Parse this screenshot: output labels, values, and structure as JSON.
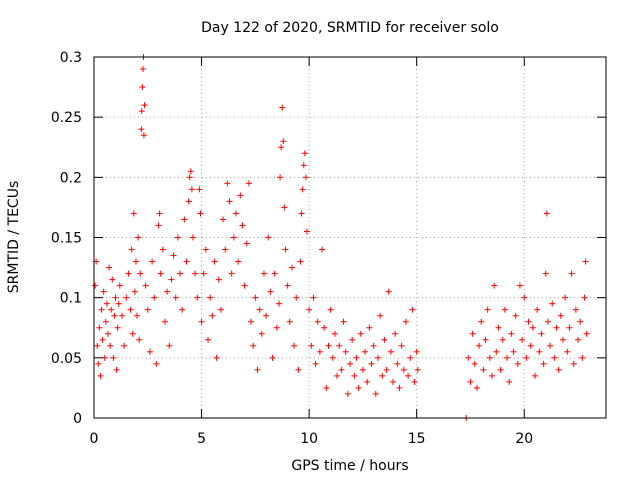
{
  "chart_data": {
    "type": "scatter",
    "title": "Day 122 of 2020, SRMTID for receiver solo",
    "xlabel": "GPS time / hours",
    "ylabel": "SRMTID / TECUs",
    "xlim": [
      0,
      23.8
    ],
    "ylim": [
      0,
      0.3
    ],
    "xticks": [
      0,
      5,
      10,
      15,
      20
    ],
    "xtick_labels": [
      "0",
      "5",
      "10",
      "15",
      "20"
    ],
    "yticks": [
      0,
      0.05,
      0.1,
      0.15,
      0.2,
      0.25,
      0.3
    ],
    "ytick_labels": [
      "0",
      "0.05",
      "0.1",
      "0.15",
      "0.2",
      "0.25",
      "0.3"
    ],
    "grid": true,
    "marker": "+",
    "color": "#ff0000",
    "series": [
      {
        "name": "SRMTID",
        "points": [
          [
            0.05,
            0.11
          ],
          [
            0.1,
            0.13
          ],
          [
            0.15,
            0.06
          ],
          [
            0.2,
            0.045
          ],
          [
            0.25,
            0.075
          ],
          [
            0.3,
            0.035
          ],
          [
            0.35,
            0.09
          ],
          [
            0.4,
            0.065
          ],
          [
            0.45,
            0.105
          ],
          [
            0.5,
            0.05
          ],
          [
            0.55,
            0.08
          ],
          [
            0.6,
            0.095
          ],
          [
            0.65,
            0.07
          ],
          [
            0.7,
            0.125
          ],
          [
            0.75,
            0.06
          ],
          [
            0.8,
            0.09
          ],
          [
            0.85,
            0.115
          ],
          [
            0.9,
            0.05
          ],
          [
            0.95,
            0.085
          ],
          [
            1.0,
            0.1
          ],
          [
            1.05,
            0.04
          ],
          [
            1.1,
            0.075
          ],
          [
            1.15,
            0.095
          ],
          [
            1.2,
            0.11
          ],
          [
            1.3,
            0.085
          ],
          [
            1.4,
            0.06
          ],
          [
            1.5,
            0.1
          ],
          [
            1.6,
            0.12
          ],
          [
            1.7,
            0.09
          ],
          [
            1.75,
            0.14
          ],
          [
            1.8,
            0.07
          ],
          [
            1.85,
            0.17
          ],
          [
            1.9,
            0.105
          ],
          [
            1.95,
            0.13
          ],
          [
            2.0,
            0.085
          ],
          [
            2.05,
            0.15
          ],
          [
            2.1,
            0.065
          ],
          [
            2.15,
            0.12
          ],
          [
            2.2,
            0.24
          ],
          [
            2.22,
            0.255
          ],
          [
            2.25,
            0.275
          ],
          [
            2.28,
            0.29
          ],
          [
            2.3,
            0.3
          ],
          [
            2.32,
            0.235
          ],
          [
            2.35,
            0.26
          ],
          [
            2.4,
            0.11
          ],
          [
            2.5,
            0.09
          ],
          [
            2.6,
            0.055
          ],
          [
            2.7,
            0.13
          ],
          [
            2.8,
            0.1
          ],
          [
            2.9,
            0.045
          ],
          [
            3.0,
            0.16
          ],
          [
            3.05,
            0.17
          ],
          [
            3.1,
            0.12
          ],
          [
            3.2,
            0.14
          ],
          [
            3.3,
            0.08
          ],
          [
            3.4,
            0.105
          ],
          [
            3.5,
            0.06
          ],
          [
            3.6,
            0.115
          ],
          [
            3.7,
            0.135
          ],
          [
            3.8,
            0.1
          ],
          [
            3.9,
            0.15
          ],
          [
            4.0,
            0.12
          ],
          [
            4.1,
            0.09
          ],
          [
            4.2,
            0.165
          ],
          [
            4.3,
            0.13
          ],
          [
            4.4,
            0.18
          ],
          [
            4.45,
            0.2
          ],
          [
            4.5,
            0.205
          ],
          [
            4.55,
            0.19
          ],
          [
            4.6,
            0.15
          ],
          [
            4.7,
            0.12
          ],
          [
            4.8,
            0.1
          ],
          [
            4.9,
            0.19
          ],
          [
            4.95,
            0.17
          ],
          [
            5.0,
            0.08
          ],
          [
            5.1,
            0.12
          ],
          [
            5.2,
            0.14
          ],
          [
            5.3,
            0.065
          ],
          [
            5.4,
            0.1
          ],
          [
            5.5,
            0.085
          ],
          [
            5.6,
            0.13
          ],
          [
            5.7,
            0.05
          ],
          [
            5.8,
            0.115
          ],
          [
            5.9,
            0.09
          ],
          [
            6.0,
            0.165
          ],
          [
            6.1,
            0.14
          ],
          [
            6.2,
            0.195
          ],
          [
            6.3,
            0.18
          ],
          [
            6.4,
            0.12
          ],
          [
            6.5,
            0.15
          ],
          [
            6.6,
            0.17
          ],
          [
            6.7,
            0.13
          ],
          [
            6.8,
            0.185
          ],
          [
            6.9,
            0.16
          ],
          [
            7.0,
            0.11
          ],
          [
            7.1,
            0.145
          ],
          [
            7.2,
            0.195
          ],
          [
            7.3,
            0.08
          ],
          [
            7.4,
            0.06
          ],
          [
            7.5,
            0.1
          ],
          [
            7.6,
            0.04
          ],
          [
            7.7,
            0.09
          ],
          [
            7.8,
            0.07
          ],
          [
            7.9,
            0.12
          ],
          [
            8.0,
            0.085
          ],
          [
            8.1,
            0.15
          ],
          [
            8.2,
            0.105
          ],
          [
            8.3,
            0.05
          ],
          [
            8.4,
            0.12
          ],
          [
            8.5,
            0.075
          ],
          [
            8.6,
            0.095
          ],
          [
            8.65,
            0.2
          ],
          [
            8.7,
            0.225
          ],
          [
            8.75,
            0.258
          ],
          [
            8.8,
            0.23
          ],
          [
            8.85,
            0.175
          ],
          [
            8.9,
            0.14
          ],
          [
            9.0,
            0.11
          ],
          [
            9.1,
            0.08
          ],
          [
            9.2,
            0.125
          ],
          [
            9.3,
            0.06
          ],
          [
            9.4,
            0.1
          ],
          [
            9.5,
            0.04
          ],
          [
            9.6,
            0.13
          ],
          [
            9.65,
            0.17
          ],
          [
            9.7,
            0.19
          ],
          [
            9.75,
            0.21
          ],
          [
            9.8,
            0.22
          ],
          [
            9.85,
            0.2
          ],
          [
            9.9,
            0.155
          ],
          [
            10.0,
            0.09
          ],
          [
            10.1,
            0.06
          ],
          [
            10.2,
            0.1
          ],
          [
            10.3,
            0.045
          ],
          [
            10.4,
            0.08
          ],
          [
            10.5,
            0.055
          ],
          [
            10.6,
            0.14
          ],
          [
            10.7,
            0.075
          ],
          [
            10.8,
            0.025
          ],
          [
            10.9,
            0.06
          ],
          [
            11.0,
            0.09
          ],
          [
            11.1,
            0.05
          ],
          [
            11.2,
            0.07
          ],
          [
            11.3,
            0.035
          ],
          [
            11.4,
            0.06
          ],
          [
            11.5,
            0.04
          ],
          [
            11.6,
            0.08
          ],
          [
            11.7,
            0.055
          ],
          [
            11.8,
            0.02
          ],
          [
            11.9,
            0.045
          ],
          [
            12.0,
            0.065
          ],
          [
            12.1,
            0.035
          ],
          [
            12.2,
            0.05
          ],
          [
            12.3,
            0.025
          ],
          [
            12.4,
            0.07
          ],
          [
            12.5,
            0.04
          ],
          [
            12.6,
            0.055
          ],
          [
            12.7,
            0.03
          ],
          [
            12.8,
            0.075
          ],
          [
            12.9,
            0.045
          ],
          [
            13.0,
            0.06
          ],
          [
            13.1,
            0.02
          ],
          [
            13.2,
            0.05
          ],
          [
            13.3,
            0.085
          ],
          [
            13.4,
            0.035
          ],
          [
            13.5,
            0.065
          ],
          [
            13.6,
            0.04
          ],
          [
            13.7,
            0.105
          ],
          [
            13.8,
            0.055
          ],
          [
            13.9,
            0.03
          ],
          [
            14.0,
            0.07
          ],
          [
            14.1,
            0.045
          ],
          [
            14.2,
            0.025
          ],
          [
            14.3,
            0.06
          ],
          [
            14.4,
            0.04
          ],
          [
            14.5,
            0.08
          ],
          [
            14.6,
            0.035
          ],
          [
            14.7,
            0.05
          ],
          [
            14.8,
            0.09
          ],
          [
            14.9,
            0.03
          ],
          [
            15.0,
            0.055
          ],
          [
            15.05,
            0.04
          ],
          [
            17.3,
            0.0
          ],
          [
            17.4,
            0.05
          ],
          [
            17.5,
            0.03
          ],
          [
            17.6,
            0.07
          ],
          [
            17.7,
            0.045
          ],
          [
            17.8,
            0.025
          ],
          [
            17.9,
            0.06
          ],
          [
            18.0,
            0.08
          ],
          [
            18.1,
            0.04
          ],
          [
            18.2,
            0.065
          ],
          [
            18.3,
            0.09
          ],
          [
            18.4,
            0.05
          ],
          [
            18.5,
            0.035
          ],
          [
            18.6,
            0.11
          ],
          [
            18.7,
            0.055
          ],
          [
            18.8,
            0.075
          ],
          [
            18.9,
            0.04
          ],
          [
            19.0,
            0.065
          ],
          [
            19.1,
            0.09
          ],
          [
            19.2,
            0.05
          ],
          [
            19.3,
            0.03
          ],
          [
            19.4,
            0.07
          ],
          [
            19.5,
            0.055
          ],
          [
            19.6,
            0.085
          ],
          [
            19.7,
            0.045
          ],
          [
            19.8,
            0.11
          ],
          [
            19.9,
            0.065
          ],
          [
            20.0,
            0.1
          ],
          [
            20.1,
            0.05
          ],
          [
            20.2,
            0.08
          ],
          [
            20.3,
            0.06
          ],
          [
            20.4,
            0.075
          ],
          [
            20.5,
            0.035
          ],
          [
            20.6,
            0.09
          ],
          [
            20.7,
            0.055
          ],
          [
            20.8,
            0.07
          ],
          [
            20.9,
            0.045
          ],
          [
            21.0,
            0.12
          ],
          [
            21.05,
            0.17
          ],
          [
            21.1,
            0.08
          ],
          [
            21.2,
            0.06
          ],
          [
            21.3,
            0.095
          ],
          [
            21.4,
            0.05
          ],
          [
            21.5,
            0.075
          ],
          [
            21.6,
            0.04
          ],
          [
            21.7,
            0.085
          ],
          [
            21.8,
            0.065
          ],
          [
            21.9,
            0.1
          ],
          [
            22.0,
            0.055
          ],
          [
            22.1,
            0.075
          ],
          [
            22.2,
            0.12
          ],
          [
            22.3,
            0.045
          ],
          [
            22.4,
            0.09
          ],
          [
            22.5,
            0.065
          ],
          [
            22.6,
            0.08
          ],
          [
            22.7,
            0.05
          ],
          [
            22.8,
            0.1
          ],
          [
            22.85,
            0.13
          ],
          [
            22.9,
            0.07
          ]
        ]
      }
    ]
  }
}
